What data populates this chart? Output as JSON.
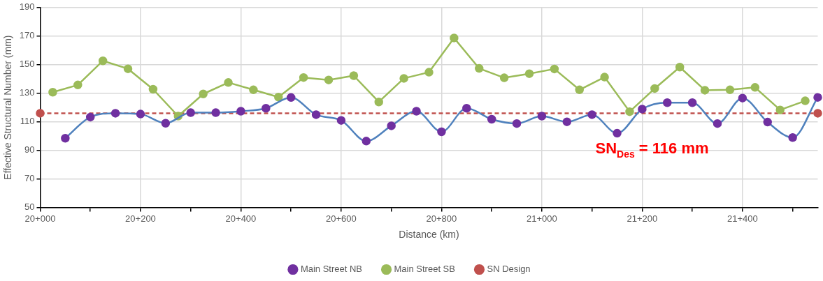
{
  "chart_data": {
    "type": "line",
    "xlabel": "Distance (km)",
    "ylabel": "Effective Structural Number (mm)",
    "categories": [
      "20+000",
      null,
      null,
      null,
      null,
      null,
      null,
      null,
      "20+200",
      null,
      null,
      null,
      null,
      null,
      null,
      null,
      "20+400",
      null,
      null,
      null,
      null,
      null,
      null,
      null,
      "20+600",
      null,
      null,
      null,
      null,
      null,
      null,
      null,
      "20+800",
      null,
      null,
      null,
      null,
      null,
      null,
      null,
      "21+000",
      null,
      null,
      null,
      null,
      null,
      null,
      null,
      "21+200",
      null,
      null,
      null,
      null,
      null,
      null,
      null,
      "21+400",
      null,
      null,
      null,
      null,
      null,
      null
    ],
    "ylim": [
      50,
      190
    ],
    "yticks": [
      50,
      70,
      90,
      110,
      130,
      150,
      170,
      190
    ],
    "grid": true,
    "legend": "bottom",
    "marker": "circle",
    "annotations": [
      "SN$_{Des}$ = 116 mm"
    ],
    "series": [
      {
        "name": "Main Street NB",
        "color": "#4f81bd",
        "values": [
          null,
          null,
          98.5,
          null,
          113.3,
          null,
          116,
          null,
          115.4,
          null,
          109,
          null,
          116.4,
          null,
          116.4,
          null,
          117.4,
          null,
          119.5,
          null,
          127,
          null,
          115,
          null,
          111,
          null,
          96.5,
          null,
          107.2,
          null,
          117.4,
          null,
          103,
          null,
          119.5,
          null,
          111.8,
          null,
          108.8,
          null,
          114,
          null,
          110,
          null,
          115,
          null,
          102,
          null,
          118.9,
          null,
          123.4,
          null,
          123.4,
          null,
          108.8,
          null,
          126.6,
          null,
          109.8,
          null,
          99,
          null,
          127.1
        ],
        "line_style": "solid"
      },
      {
        "name": "Main Street SB",
        "color": "#9bbb59",
        "values": [
          null,
          130.7,
          null,
          135.8,
          null,
          152.7,
          null,
          147.1,
          null,
          132.8,
          null,
          114,
          null,
          129.5,
          null,
          137.5,
          null,
          132.4,
          null,
          127.3,
          null,
          141,
          null,
          139.3,
          null,
          142.3,
          null,
          123.9,
          null,
          140.4,
          null,
          144.7,
          null,
          168.7,
          null,
          147.4,
          null,
          140.8,
          null,
          143.7,
          null,
          147,
          null,
          132.4,
          null,
          141.3,
          null,
          117.1,
          null,
          133.3,
          null,
          148.3,
          null,
          132.1,
          null,
          132.4,
          null,
          134.1,
          null,
          118.3,
          null,
          124.7,
          null
        ],
        "line_style": "solid"
      },
      {
        "name": "SN Design",
        "color": "#c0504d",
        "values": [
          116,
          null,
          null,
          null,
          null,
          null,
          null,
          null,
          null,
          null,
          null,
          null,
          null,
          null,
          null,
          null,
          null,
          null,
          null,
          null,
          null,
          null,
          null,
          null,
          null,
          null,
          null,
          null,
          null,
          null,
          null,
          null,
          null,
          null,
          null,
          null,
          null,
          null,
          null,
          null,
          null,
          null,
          null,
          null,
          null,
          null,
          null,
          null,
          null,
          null,
          null,
          null,
          null,
          null,
          null,
          null,
          null,
          null,
          null,
          null,
          null,
          null,
          116
        ],
        "line_style": "dashed"
      }
    ]
  }
}
